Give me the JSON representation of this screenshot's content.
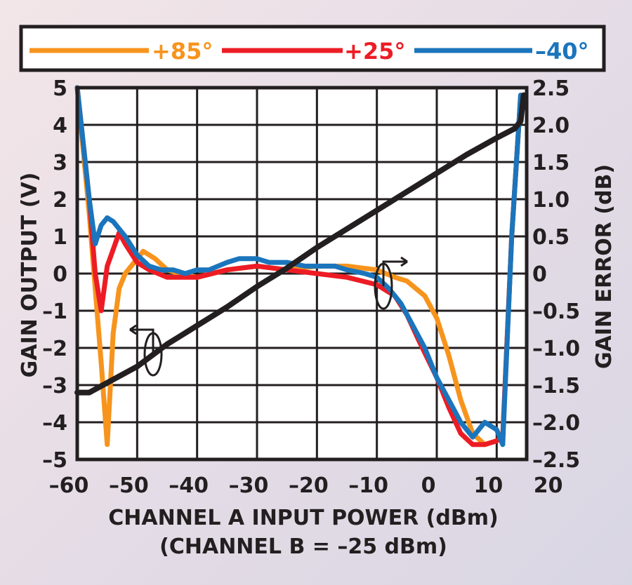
{
  "chart_data": {
    "type": "line",
    "xlabel": "CHANNEL A INPUT POWER (dBm)",
    "xlabel2": "(CHANNEL B = –25 dBm)",
    "ylabel_left": "GAIN OUTPUT (V)",
    "ylabel_right": "GAIN ERROR (dB)",
    "xlim": [
      -60,
      15
    ],
    "ylim_left": [
      -5,
      5
    ],
    "ylim_right": [
      -2.5,
      2.5
    ],
    "x_ticks": [
      "–60",
      "–50",
      "–40",
      "–30",
      "–20",
      "–10",
      "0",
      "10",
      "20"
    ],
    "y_left_ticks": [
      "5",
      "4",
      "3",
      "2",
      "1",
      "0",
      "–1",
      "–2",
      "–3",
      "–4",
      "–5"
    ],
    "y_right_ticks": [
      "2.5",
      "2.0",
      "1.5",
      "1.0",
      "0.5",
      "0",
      "–0.5",
      "–1.0",
      "–1.5",
      "–2.0",
      "–2.5"
    ],
    "grid": true,
    "legend_position": "top",
    "series": [
      {
        "name": "+85°",
        "color": "#f7941d",
        "axis": "right",
        "points": [
          [
            -60,
            2.5
          ],
          [
            -58,
            0.8
          ],
          [
            -56,
            -1.2
          ],
          [
            -55,
            -2.3
          ],
          [
            -54,
            -0.8
          ],
          [
            -53,
            -0.2
          ],
          [
            -52,
            0.0
          ],
          [
            -50,
            0.2
          ],
          [
            -49,
            0.3
          ],
          [
            -47,
            0.2
          ],
          [
            -45,
            0.05
          ],
          [
            -43,
            0.0
          ],
          [
            -40,
            -0.05
          ],
          [
            -35,
            0.05
          ],
          [
            -30,
            0.1
          ],
          [
            -25,
            0.05
          ],
          [
            -20,
            0.1
          ],
          [
            -15,
            0.1
          ],
          [
            -10,
            0.05
          ],
          [
            -7,
            -0.05
          ],
          [
            -5,
            -0.1
          ],
          [
            -2,
            -0.3
          ],
          [
            0,
            -0.6
          ],
          [
            2,
            -1.1
          ],
          [
            4,
            -1.7
          ],
          [
            6,
            -2.15
          ],
          [
            8,
            -2.3
          ],
          [
            10,
            -2.25
          ],
          [
            11,
            -2.2
          ],
          [
            12.5,
            0.5
          ],
          [
            14,
            2.4
          ]
        ]
      },
      {
        "name": "+25°",
        "color": "#ed1c24",
        "axis": "right",
        "points": [
          [
            -60,
            2.5
          ],
          [
            -58,
            1.0
          ],
          [
            -57,
            0.0
          ],
          [
            -56,
            -0.5
          ],
          [
            -55,
            0.1
          ],
          [
            -53,
            0.55
          ],
          [
            -52,
            0.4
          ],
          [
            -50,
            0.15
          ],
          [
            -48,
            0.05
          ],
          [
            -45,
            -0.05
          ],
          [
            -42,
            -0.05
          ],
          [
            -40,
            -0.05
          ],
          [
            -35,
            0.05
          ],
          [
            -30,
            0.1
          ],
          [
            -25,
            0.05
          ],
          [
            -20,
            0.0
          ],
          [
            -15,
            -0.05
          ],
          [
            -10,
            -0.15
          ],
          [
            -7,
            -0.3
          ],
          [
            -5,
            -0.55
          ],
          [
            -3,
            -0.9
          ],
          [
            0,
            -1.4
          ],
          [
            2,
            -1.8
          ],
          [
            4,
            -2.15
          ],
          [
            6,
            -2.3
          ],
          [
            8,
            -2.3
          ],
          [
            10,
            -2.25
          ],
          [
            11,
            -2.2
          ],
          [
            12.5,
            0.5
          ],
          [
            14,
            2.4
          ]
        ]
      },
      {
        "name": "–40°",
        "color": "#1b75bc",
        "axis": "right",
        "points": [
          [
            -60,
            2.5
          ],
          [
            -58,
            1.0
          ],
          [
            -57,
            0.4
          ],
          [
            -56,
            0.65
          ],
          [
            -55,
            0.75
          ],
          [
            -54,
            0.7
          ],
          [
            -52,
            0.5
          ],
          [
            -50,
            0.25
          ],
          [
            -48,
            0.1
          ],
          [
            -46,
            0.05
          ],
          [
            -44,
            0.05
          ],
          [
            -42,
            0.0
          ],
          [
            -40,
            0.05
          ],
          [
            -38,
            0.05
          ],
          [
            -35,
            0.15
          ],
          [
            -33,
            0.2
          ],
          [
            -30,
            0.2
          ],
          [
            -28,
            0.15
          ],
          [
            -25,
            0.15
          ],
          [
            -22,
            0.1
          ],
          [
            -20,
            0.1
          ],
          [
            -17,
            0.1
          ],
          [
            -15,
            0.05
          ],
          [
            -12,
            0.0
          ],
          [
            -10,
            -0.05
          ],
          [
            -8,
            -0.2
          ],
          [
            -6,
            -0.4
          ],
          [
            -4,
            -0.7
          ],
          [
            -2,
            -1.0
          ],
          [
            0,
            -1.4
          ],
          [
            2,
            -1.7
          ],
          [
            4,
            -2.0
          ],
          [
            6,
            -2.2
          ],
          [
            7,
            -2.1
          ],
          [
            8,
            -2.0
          ],
          [
            9,
            -2.05
          ],
          [
            10,
            -2.1
          ],
          [
            11,
            -2.3
          ],
          [
            12.5,
            0.5
          ],
          [
            14,
            2.4
          ]
        ]
      },
      {
        "name": "",
        "color": "#231f20",
        "axis": "left",
        "points": [
          [
            -60,
            -3.2
          ],
          [
            -58,
            -3.2
          ],
          [
            -50,
            -2.5
          ],
          [
            -45,
            -1.9
          ],
          [
            -40,
            -1.4
          ],
          [
            -35,
            -0.9
          ],
          [
            -30,
            -0.35
          ],
          [
            -25,
            0.15
          ],
          [
            -20,
            0.7
          ],
          [
            -15,
            1.2
          ],
          [
            -10,
            1.7
          ],
          [
            -5,
            2.2
          ],
          [
            0,
            2.7
          ],
          [
            5,
            3.2
          ],
          [
            10,
            3.65
          ],
          [
            13,
            3.9
          ],
          [
            14,
            4.1
          ],
          [
            14.5,
            4.8
          ]
        ]
      }
    ]
  }
}
